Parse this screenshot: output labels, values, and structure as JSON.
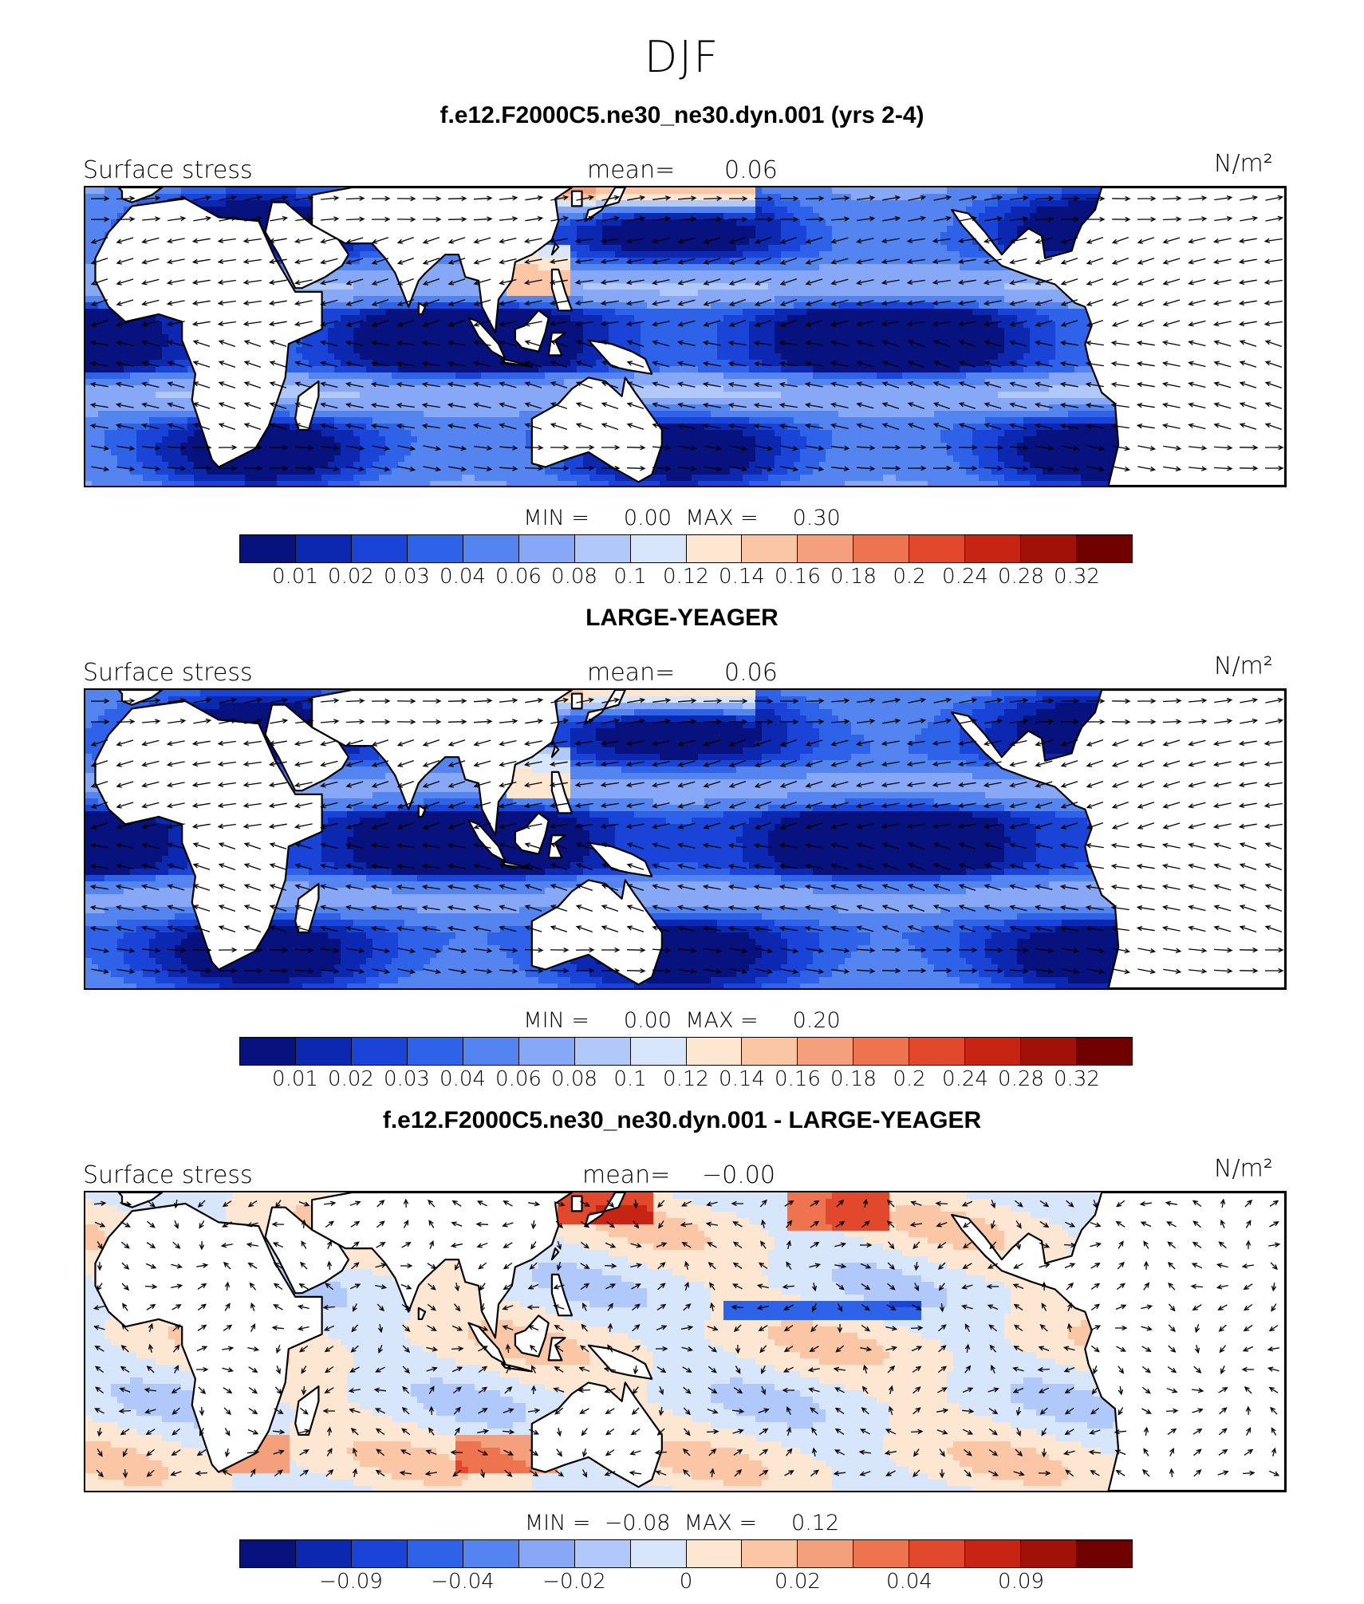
{
  "season": "DJF",
  "colors": {
    "palette": [
      "#08127e",
      "#0d28b0",
      "#1a44d8",
      "#2e62e8",
      "#5484f0",
      "#86a8f6",
      "#b0c8fa",
      "#d8e6fc",
      "#fde6d2",
      "#fbc6a6",
      "#f5a07c",
      "#ee7450",
      "#e2482c",
      "#c82414",
      "#a01208",
      "#700000"
    ],
    "land": "#ffffff",
    "coast": "#000000"
  },
  "panels": [
    {
      "title": "f.e12.F2000C5.ne30_ne30.dyn.001 (yrs 2-4)",
      "left_label": "Surface stress",
      "mean_label": "mean=",
      "mean_value": "0.06",
      "units": "N/m²",
      "min_label": "MIN =",
      "min_value": "0.00",
      "max_label": "MAX =",
      "max_value": "0.30",
      "colorbar_ticks": [
        "0.01",
        "0.02",
        "0.03",
        "0.04",
        "0.06",
        "0.08",
        "0.1",
        "0.12",
        "0.14",
        "0.16",
        "0.18",
        "0.2",
        "0.24",
        "0.28",
        "0.32"
      ],
      "field": "abs"
    },
    {
      "title": "LARGE-YEAGER",
      "left_label": "Surface stress",
      "mean_label": "mean=",
      "mean_value": "0.06",
      "units": "N/m²",
      "min_label": "MIN =",
      "min_value": "0.00",
      "max_label": "MAX =",
      "max_value": "0.20",
      "colorbar_ticks": [
        "0.01",
        "0.02",
        "0.03",
        "0.04",
        "0.06",
        "0.08",
        "0.1",
        "0.12",
        "0.14",
        "0.16",
        "0.18",
        "0.2",
        "0.24",
        "0.28",
        "0.32"
      ],
      "field": "abs"
    },
    {
      "title": "f.e12.F2000C5.ne30_ne30.dyn.001 - LARGE-YEAGER",
      "left_label": "Surface stress",
      "mean_label": "mean=",
      "mean_value": "−0.00",
      "units": "N/m²",
      "min_label": "MIN =",
      "min_value": "−0.08",
      "max_label": "MAX =",
      "max_value": "0.12",
      "colorbar_ticks": [
        "",
        "−0.09",
        "",
        "−0.04",
        "",
        "−0.02",
        "",
        "0",
        "",
        "0.02",
        "",
        "0.04",
        "",
        "0.09",
        ""
      ],
      "field": "diff"
    }
  ]
}
